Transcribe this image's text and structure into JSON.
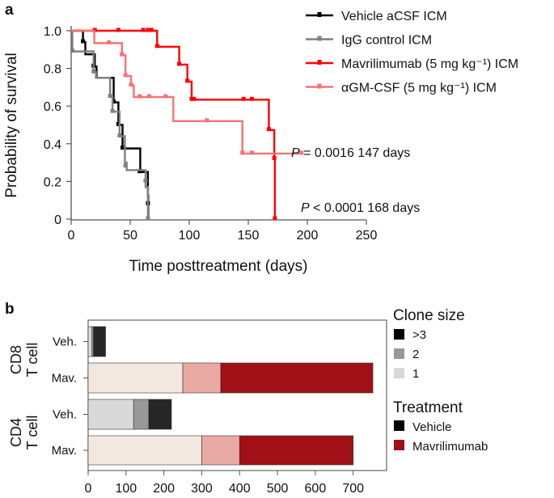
{
  "panel_labels": {
    "a": "a",
    "b": "b"
  },
  "chart_data": [
    {
      "type": "line",
      "subtype": "kaplan-meier step",
      "xlabel": "Time posttreatment (days)",
      "ylabel": "Probability of survival",
      "xlim": [
        0,
        250
      ],
      "ylim": [
        0,
        1.0
      ],
      "xticks": [
        "0",
        "50",
        "100",
        "150",
        "200",
        "250"
      ],
      "yticks": [
        "0",
        "0.2",
        "0.4",
        "0.6",
        "0.8",
        "1.0"
      ],
      "grid": false,
      "legend_position": "top-right",
      "series": [
        {
          "name": "Vehicle aCSF ICM",
          "color": "#000000",
          "steps": [
            [
              0,
              1.0
            ],
            [
              10,
              0.94
            ],
            [
              12,
              0.875
            ],
            [
              20,
              0.81
            ],
            [
              21.5,
              0.75
            ],
            [
              36,
              0.62
            ],
            [
              40,
              0.5
            ],
            [
              43.5,
              0.375
            ],
            [
              58.5,
              0.25
            ],
            [
              65,
              0.125
            ],
            [
              65.3,
              0
            ]
          ],
          "censored": [
            [
              10,
              0.94
            ],
            [
              19,
              0.81
            ],
            [
              36,
              0.62
            ],
            [
              40,
              0.5
            ],
            [
              43.5,
              0.375
            ],
            [
              58,
              0.25
            ],
            [
              65,
              0.08
            ]
          ]
        },
        {
          "name": "IgG control ICM",
          "color": "#808080",
          "steps": [
            [
              0,
              1.0
            ],
            [
              1,
              0.89
            ],
            [
              19,
              0.78
            ],
            [
              21,
              0.75
            ],
            [
              33,
              0.65
            ],
            [
              35,
              0.57
            ],
            [
              41,
              0.44
            ],
            [
              45.5,
              0.3
            ],
            [
              47,
              0.26
            ],
            [
              63,
              0.17
            ],
            [
              65,
              0
            ]
          ],
          "censored": [
            [
              1,
              0.89
            ],
            [
              19,
              0.78
            ],
            [
              33,
              0.65
            ],
            [
              35,
              0.57
            ],
            [
              41,
              0.44
            ],
            [
              46,
              0.28
            ],
            [
              63,
              0.2
            ],
            [
              65,
              0
            ]
          ]
        },
        {
          "name": "Mavrilimumab (5 mg kg⁻¹) ICM",
          "color": "#ff0000",
          "steps": [
            [
              0,
              1.0
            ],
            [
              72.8,
              0.915
            ],
            [
              91.5,
              0.82
            ],
            [
              98.4,
              0.73
            ],
            [
              102,
              0.634
            ],
            [
              167.4,
              0.473
            ],
            [
              172,
              0.32
            ],
            [
              172.5,
              0
            ]
          ],
          "censored": [
            [
              20,
              1.0
            ],
            [
              40,
              1.0
            ],
            [
              61,
              1.0
            ],
            [
              65,
              1.0
            ],
            [
              68,
              1.0
            ],
            [
              72.8,
              0.915
            ],
            [
              91.5,
              0.82
            ],
            [
              98.4,
              0.73
            ],
            [
              102,
              0.634
            ],
            [
              104,
              0.634
            ],
            [
              146,
              0.634
            ],
            [
              153,
              0.634
            ],
            [
              167.4,
              0.473
            ],
            [
              172,
              0.32
            ],
            [
              172.5,
              0
            ]
          ]
        },
        {
          "name": "αGM-CSF (5 mg kg⁻¹) ICM",
          "color": "#f77272",
          "steps": [
            [
              0,
              1.0
            ],
            [
              19.6,
              0.934
            ],
            [
              43,
              0.87
            ],
            [
              46,
              0.76
            ],
            [
              50.7,
              0.71
            ],
            [
              53,
              0.648
            ],
            [
              86.5,
              0.52
            ],
            [
              145,
              0.348
            ]
          ],
          "end_day": 195,
          "censored": [
            [
              32,
              0.934
            ],
            [
              43,
              0.87
            ],
            [
              46,
              0.76
            ],
            [
              50.7,
              0.71
            ],
            [
              58,
              0.648
            ],
            [
              66,
              0.648
            ],
            [
              80,
              0.648
            ],
            [
              115,
              0.52
            ],
            [
              145,
              0.348
            ],
            [
              153,
              0.348
            ],
            [
              195,
              0.348
            ]
          ]
        }
      ],
      "annotations": [
        {
          "prefix": "P",
          "text": " = 0.0016 147 days"
        },
        {
          "prefix": "P",
          "text": " < 0.0001 168 days"
        }
      ]
    },
    {
      "type": "bar",
      "orientation": "horizontal",
      "stacked": true,
      "xlim": [
        0,
        790
      ],
      "xticks": [
        "0",
        "100",
        "200",
        "300",
        "400",
        "500",
        "600",
        "700"
      ],
      "groups": [
        "CD8\nT cell",
        "CD4\nT cell"
      ],
      "group_labels": [
        [
          "CD8",
          "T cell"
        ],
        [
          "CD4",
          "T cell"
        ]
      ],
      "categories": [
        "Veh.",
        "Mav.",
        "Veh.",
        "Mav."
      ],
      "clone_size_order": [
        "1",
        "2",
        ">3"
      ],
      "bars": [
        {
          "group": "CD8 T cell",
          "treatment": "Vehicle",
          "label": "Veh.",
          "values": [
            10,
            4,
            32
          ],
          "colors": [
            "#d9d9d9",
            "#999999",
            "#262626"
          ]
        },
        {
          "group": "CD8 T cell",
          "treatment": "Mavrilimumab",
          "label": "Mav.",
          "values": [
            250,
            100,
            402
          ],
          "colors": [
            "#f3e8e0",
            "#e8aaa2",
            "#a10f17"
          ]
        },
        {
          "group": "CD4 T cell",
          "treatment": "Vehicle",
          "label": "Veh.",
          "values": [
            120,
            40,
            60
          ],
          "colors": [
            "#d9d9d9",
            "#999999",
            "#262626"
          ]
        },
        {
          "group": "CD4 T cell",
          "treatment": "Mavrilimumab",
          "label": "Mav.",
          "values": [
            300,
            100,
            300
          ],
          "colors": [
            "#f3e8e0",
            "#e8aaa2",
            "#a10f17"
          ]
        }
      ],
      "legends": [
        {
          "title": "Clone size",
          "items": [
            {
              "label": ">3",
              "color": "#000000"
            },
            {
              "label": "2",
              "color": "#999999"
            },
            {
              "label": "1",
              "color": "#d9d9d9"
            }
          ]
        },
        {
          "title": "Treatment",
          "items": [
            {
              "label": "Vehicle",
              "color": "#000000"
            },
            {
              "label": "Mavrilimumab",
              "color": "#a10f17"
            }
          ]
        }
      ]
    }
  ]
}
